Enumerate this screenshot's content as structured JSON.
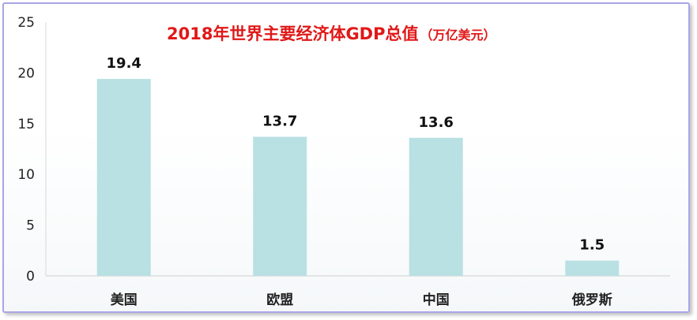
{
  "chart_data": {
    "type": "bar",
    "title": "2018年世界主要经济体GDP总值",
    "subtitle": "（万亿美元）",
    "categories": [
      "美国",
      "欧盟",
      "中国",
      "俄罗斯"
    ],
    "values": [
      19.4,
      13.7,
      13.6,
      1.5
    ],
    "data_labels": [
      "19.4",
      "13.7",
      "13.6",
      "1.5"
    ],
    "y_ticks": [
      "0",
      "5",
      "10",
      "15",
      "20",
      "25"
    ],
    "ylim": [
      0,
      25
    ],
    "xlabel": "",
    "ylabel": "",
    "grid": false,
    "legend": "none",
    "colors": {
      "bar": "#b9e0e3",
      "title": "#e01818",
      "frame": "#a9a6e6"
    }
  }
}
